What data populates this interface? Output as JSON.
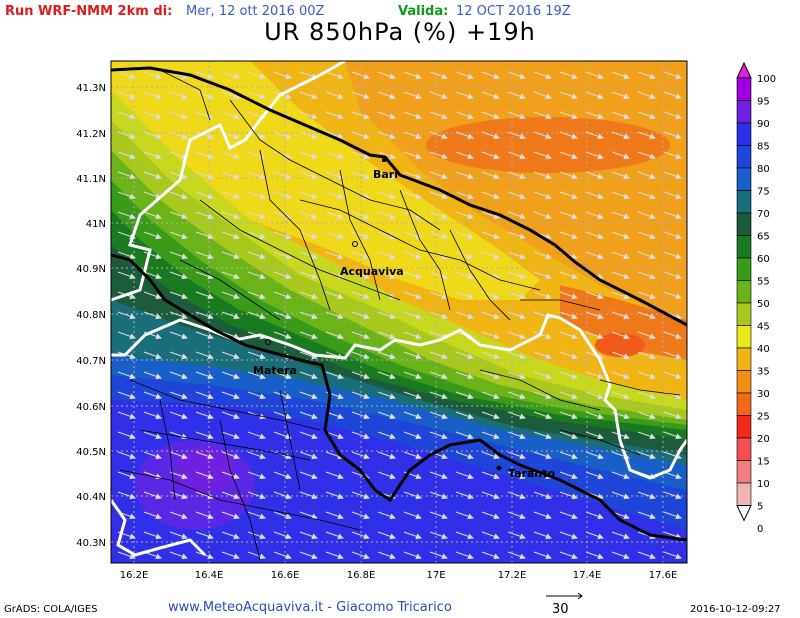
{
  "header": {
    "run_label": "Run WRF-NMM 2km di:",
    "run_time": "Mer, 12 ott 2016 00Z",
    "valid_label": "Valida:",
    "valid_time": "12 OCT 2016 19Z"
  },
  "title": "UR 850hPa (%) +19h",
  "axes": {
    "y_ticks": [
      "41.3N",
      "41.2N",
      "41.1N",
      "41N",
      "40.9N",
      "40.8N",
      "40.7N",
      "40.6N",
      "40.5N",
      "40.4N",
      "40.3N"
    ],
    "x_ticks": [
      "16.2E",
      "16.4E",
      "16.6E",
      "16.8E",
      "17E",
      "17.2E",
      "17.4E",
      "17.6E"
    ]
  },
  "cities": [
    {
      "name": "Bari"
    },
    {
      "name": "Acquaviva"
    },
    {
      "name": "Matera"
    },
    {
      "name": "Taranto"
    }
  ],
  "colorbar": {
    "levels": [
      "100",
      "95",
      "90",
      "85",
      "80",
      "75",
      "70",
      "65",
      "60",
      "55",
      "50",
      "45",
      "40",
      "35",
      "30",
      "25",
      "20",
      "15",
      "10",
      "5",
      "0"
    ],
    "colors": [
      "#e020e0",
      "#a000e0",
      "#7020e0",
      "#3030e8",
      "#1e46d8",
      "#1860c8",
      "#1a6e7a",
      "#1a5c3c",
      "#1a7a20",
      "#3a9a1a",
      "#6ab41a",
      "#a8c81e",
      "#e8e81a",
      "#f0b414",
      "#f09014",
      "#f06a1a",
      "#f02818",
      "#f05050",
      "#f08080",
      "#f0b4b4"
    ]
  },
  "footer": {
    "grads": "GrADS: COLA/IGES",
    "credit": "www.MeteoAcquaviva.it - Giacomo Tricarico",
    "vector_ref": "30",
    "timestamp": "2016-10-12-09:27"
  }
}
